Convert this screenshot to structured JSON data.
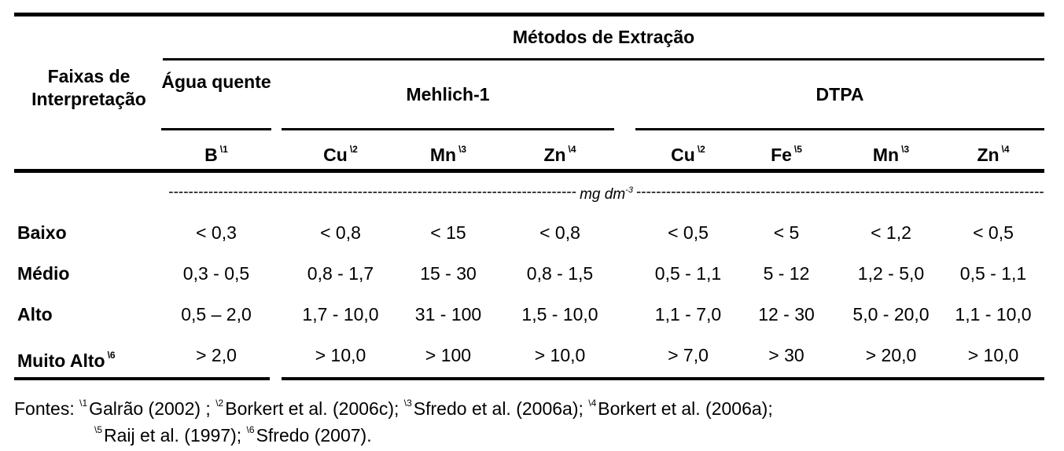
{
  "table": {
    "row_header": "Faixas de Interpretação",
    "title": "Métodos de Extração",
    "groups": {
      "agua": "Água quente",
      "mehlich": "Mehlich-1",
      "dtpa": "DTPA"
    },
    "columns": [
      {
        "el": "B",
        "note": "\\1"
      },
      {
        "el": "Cu",
        "note": "\\2"
      },
      {
        "el": "Mn",
        "note": "\\3"
      },
      {
        "el": "Zn",
        "note": "\\4"
      },
      {
        "el": "Cu",
        "note": "\\2"
      },
      {
        "el": "Fe",
        "note": "\\5"
      },
      {
        "el": "Mn",
        "note": "\\3"
      },
      {
        "el": "Zn",
        "note": "\\4"
      }
    ],
    "unit": "mg dm",
    "unit_exp": "-3",
    "rows": [
      {
        "label": "Baixo",
        "note": "",
        "values": [
          "< 0,3",
          "< 0,8",
          "< 15",
          "< 0,8",
          "< 0,5",
          "< 5",
          "< 1,2",
          "< 0,5"
        ]
      },
      {
        "label": "Médio",
        "note": "",
        "values": [
          "0,3 - 0,5",
          "0,8 - 1,7",
          "15 - 30",
          "0,8 - 1,5",
          "0,5 - 1,1",
          "5 - 12",
          "1,2 - 5,0",
          "0,5 - 1,1"
        ]
      },
      {
        "label": "Alto",
        "note": "",
        "values": [
          "0,5 – 2,0",
          "1,7 - 10,0",
          "31 - 100",
          "1,5 - 10,0",
          "1,1 - 7,0",
          "12 - 30",
          "5,0 - 20,0",
          "1,1 - 10,0"
        ]
      },
      {
        "label": "Muito Alto",
        "note": "\\6",
        "values": [
          "> 2,0",
          "> 10,0",
          "> 100",
          "> 10,0",
          "> 7,0",
          "> 30",
          "> 20,0",
          "> 10,0"
        ]
      }
    ]
  },
  "footnote": {
    "prefix": "Fontes:",
    "line1": [
      {
        "mark": "\\1",
        "text": "Galrão (2002) ;"
      },
      {
        "mark": "\\2",
        "text": "Borkert et al. (2006c);"
      },
      {
        "mark": "\\3",
        "text": "Sfredo et al.  (2006a);"
      },
      {
        "mark": "\\4",
        "text": "Borkert et al. (2006a);"
      }
    ],
    "line2": [
      {
        "mark": "\\5",
        "text": "Raij et al. (1997);"
      },
      {
        "mark": "\\6",
        "text": "Sfredo (2007)."
      }
    ]
  }
}
